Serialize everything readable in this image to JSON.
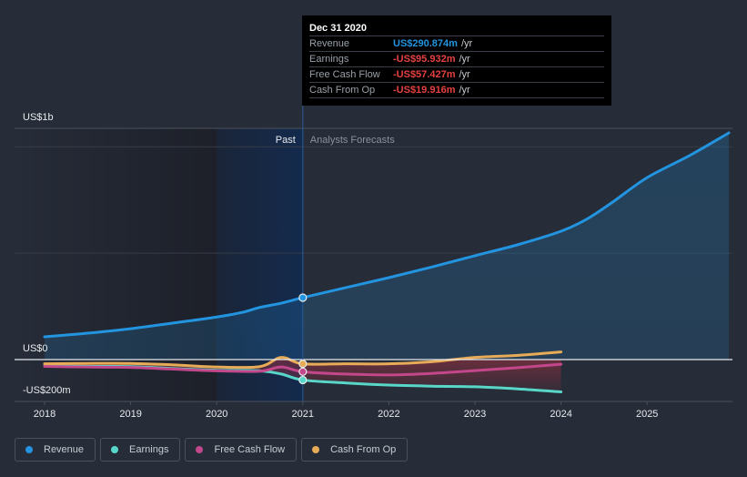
{
  "tooltip": {
    "date": "Dec 31 2020",
    "rows": [
      {
        "label": "Revenue",
        "value": "US$290.874m",
        "unit": "/yr",
        "color": "#2394df"
      },
      {
        "label": "Earnings",
        "value": "-US$95.932m",
        "unit": "/yr",
        "color": "#e64141"
      },
      {
        "label": "Free Cash Flow",
        "value": "-US$57.427m",
        "unit": "/yr",
        "color": "#e64141"
      },
      {
        "label": "Cash From Op",
        "value": "-US$19.916m",
        "unit": "/yr",
        "color": "#e64141"
      }
    ]
  },
  "legend": [
    {
      "label": "Revenue",
      "color": "#2394df"
    },
    {
      "label": "Earnings",
      "color": "#58d7c8"
    },
    {
      "label": "Free Cash Flow",
      "color": "#c2478b"
    },
    {
      "label": "Cash From Op",
      "color": "#e8ab58"
    }
  ],
  "chart_data": {
    "type": "line",
    "title": "",
    "xlabel": "",
    "ylabel": "",
    "y_unit": "US$ millions",
    "ylim": [
      -200,
      1000
    ],
    "y_tick_labels": [
      {
        "value": 1000,
        "label": "US$1b"
      },
      {
        "value": 0,
        "label": "US$0"
      },
      {
        "value": -200,
        "label": "-US$200m"
      }
    ],
    "x_ticks": [
      2018,
      2019,
      2020,
      2021,
      2022,
      2023,
      2024,
      2025
    ],
    "xlim": [
      2017.65,
      2025.95
    ],
    "past_label": "Past",
    "forecast_label": "Analysts Forecasts",
    "divider_x": 2021,
    "highlight_start_x": 2020,
    "grid": true,
    "series": [
      {
        "name": "Revenue",
        "color": "#2394df",
        "area": true,
        "points": [
          [
            2018,
            107
          ],
          [
            2018.5,
            124
          ],
          [
            2019,
            145
          ],
          [
            2019.5,
            172
          ],
          [
            2020,
            200
          ],
          [
            2020.3,
            222
          ],
          [
            2020.5,
            245
          ],
          [
            2020.75,
            265
          ],
          [
            2021,
            291
          ],
          [
            2021.5,
            338
          ],
          [
            2022,
            385
          ],
          [
            2022.5,
            435
          ],
          [
            2023,
            488
          ],
          [
            2023.5,
            540
          ],
          [
            2024,
            603
          ],
          [
            2024.3,
            660
          ],
          [
            2024.6,
            740
          ],
          [
            2025,
            855
          ],
          [
            2025.5,
            960
          ],
          [
            2025.95,
            1065
          ]
        ],
        "marker_at": 2021
      },
      {
        "name": "Earnings",
        "color": "#58d7c8",
        "points": [
          [
            2018,
            -30
          ],
          [
            2018.5,
            -32
          ],
          [
            2019,
            -33
          ],
          [
            2019.5,
            -42
          ],
          [
            2020,
            -50
          ],
          [
            2020.5,
            -53
          ],
          [
            2020.75,
            -68
          ],
          [
            2021,
            -96
          ],
          [
            2021.5,
            -110
          ],
          [
            2022,
            -120
          ],
          [
            2022.5,
            -125
          ],
          [
            2023,
            -128
          ],
          [
            2023.5,
            -138
          ],
          [
            2024,
            -152
          ]
        ],
        "marker_at": 2021
      },
      {
        "name": "Free Cash Flow",
        "color": "#c2478b",
        "points": [
          [
            2018,
            -32
          ],
          [
            2018.5,
            -35
          ],
          [
            2019,
            -37
          ],
          [
            2019.5,
            -45
          ],
          [
            2020,
            -53
          ],
          [
            2020.5,
            -55
          ],
          [
            2020.75,
            -35
          ],
          [
            2021,
            -57
          ],
          [
            2021.5,
            -68
          ],
          [
            2022,
            -72
          ],
          [
            2022.5,
            -65
          ],
          [
            2023,
            -52
          ],
          [
            2023.5,
            -38
          ],
          [
            2024,
            -22
          ]
        ],
        "marker_at": 2021
      },
      {
        "name": "Cash From Op",
        "color": "#e8ab58",
        "points": [
          [
            2018,
            -20
          ],
          [
            2018.5,
            -18
          ],
          [
            2019,
            -18
          ],
          [
            2019.5,
            -25
          ],
          [
            2020,
            -35
          ],
          [
            2020.5,
            -33
          ],
          [
            2020.75,
            10
          ],
          [
            2021,
            -20
          ],
          [
            2021.5,
            -20
          ],
          [
            2022,
            -20
          ],
          [
            2022.5,
            -10
          ],
          [
            2023,
            10
          ],
          [
            2023.5,
            20
          ],
          [
            2024,
            36
          ]
        ],
        "marker_at": 2021
      }
    ]
  }
}
